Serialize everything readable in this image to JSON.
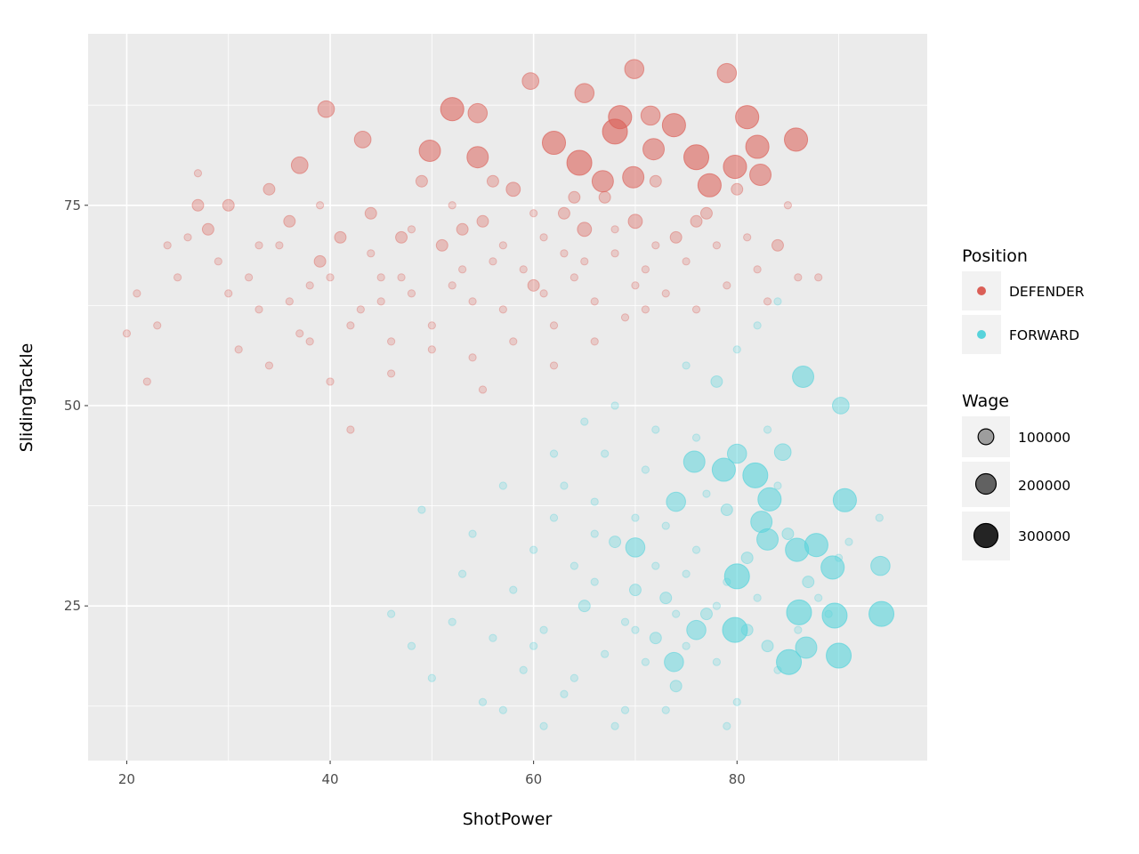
{
  "chart_data": {
    "type": "scatter",
    "xlabel": "ShotPower",
    "ylabel": "SlidingTackle",
    "xlim": [
      16.2,
      98.7
    ],
    "ylim": [
      5.7,
      96.4
    ],
    "x_ticks": [
      20,
      40,
      60,
      80
    ],
    "y_ticks": [
      25,
      50,
      75
    ],
    "grid": true,
    "legend_position": "right",
    "color_legend": {
      "title": "Position",
      "entries": [
        "DEFENDER",
        "FORWARD"
      ]
    },
    "size_legend": {
      "title": "Wage",
      "entries": [
        100000,
        200000,
        300000
      ],
      "labels": [
        "100000",
        "200000",
        "300000"
      ]
    },
    "colors": {
      "DEFENDER": "#db5f57",
      "FORWARD": "#57d3db"
    },
    "series": [
      {
        "name": "DEFENDER",
        "points": [
          [
            52,
            87,
            250000
          ],
          [
            54.5,
            86.5,
            150000
          ],
          [
            69.9,
            92,
            150000
          ],
          [
            79,
            91.5,
            150000
          ],
          [
            65,
            89,
            150000
          ],
          [
            59.7,
            90.5,
            100000
          ],
          [
            81,
            86,
            250000
          ],
          [
            68.5,
            86,
            250000
          ],
          [
            68,
            84.2,
            300000
          ],
          [
            73.8,
            85,
            250000
          ],
          [
            62,
            82.8,
            250000
          ],
          [
            64.5,
            80.3,
            300000
          ],
          [
            76,
            81,
            300000
          ],
          [
            77.3,
            77.5,
            250000
          ],
          [
            82,
            82.3,
            250000
          ],
          [
            85.8,
            83.2,
            250000
          ],
          [
            79.8,
            79.8,
            250000
          ],
          [
            82.3,
            78.8,
            200000
          ],
          [
            69.8,
            78.5,
            200000
          ],
          [
            71.8,
            82,
            200000
          ],
          [
            54.5,
            81,
            200000
          ],
          [
            49.8,
            81.8,
            200000
          ],
          [
            39.6,
            87,
            100000
          ],
          [
            37,
            80,
            100000
          ],
          [
            43.2,
            83.2,
            100000
          ],
          [
            71.5,
            86.2,
            150000
          ],
          [
            66.8,
            78,
            200000
          ],
          [
            20,
            59,
            3000
          ],
          [
            21,
            64,
            3000
          ],
          [
            22,
            53,
            3000
          ],
          [
            23,
            60,
            3000
          ],
          [
            24,
            70,
            3000
          ],
          [
            25,
            66,
            3000
          ],
          [
            26,
            71,
            3000
          ],
          [
            27,
            75,
            30000
          ],
          [
            28,
            72,
            30000
          ],
          [
            29,
            68,
            3000
          ],
          [
            30,
            75,
            30000
          ],
          [
            31,
            57,
            3000
          ],
          [
            32,
            66,
            3000
          ],
          [
            33,
            62,
            3000
          ],
          [
            34,
            77,
            30000
          ],
          [
            35,
            70,
            3000
          ],
          [
            36,
            73,
            30000
          ],
          [
            37,
            59,
            3000
          ],
          [
            38,
            65,
            3000
          ],
          [
            39,
            68,
            30000
          ],
          [
            40,
            53,
            3000
          ],
          [
            41,
            71,
            30000
          ],
          [
            42,
            47,
            3000
          ],
          [
            43,
            62,
            3000
          ],
          [
            44,
            74,
            30000
          ],
          [
            45,
            66,
            3000
          ],
          [
            46,
            58,
            3000
          ],
          [
            47,
            71,
            30000
          ],
          [
            48,
            64,
            3000
          ],
          [
            49,
            78,
            30000
          ],
          [
            50,
            60,
            3000
          ],
          [
            51,
            70,
            30000
          ],
          [
            52,
            65,
            3000
          ],
          [
            53,
            72,
            30000
          ],
          [
            54,
            56,
            3000
          ],
          [
            55,
            73,
            30000
          ],
          [
            56,
            68,
            3000
          ],
          [
            57,
            62,
            3000
          ],
          [
            58,
            77,
            60000
          ],
          [
            59,
            67,
            3000
          ],
          [
            60,
            65,
            30000
          ],
          [
            61,
            71,
            3000
          ],
          [
            62,
            60,
            3000
          ],
          [
            63,
            74,
            30000
          ],
          [
            64,
            66,
            3000
          ],
          [
            65,
            72,
            60000
          ],
          [
            66,
            63,
            3000
          ],
          [
            67,
            76,
            30000
          ],
          [
            68,
            69,
            3000
          ],
          [
            69,
            61,
            3000
          ],
          [
            70,
            73,
            60000
          ],
          [
            71,
            67,
            3000
          ],
          [
            72,
            78,
            30000
          ],
          [
            73,
            64,
            3000
          ],
          [
            74,
            71,
            30000
          ],
          [
            75,
            68,
            3000
          ],
          [
            76,
            62,
            3000
          ],
          [
            77,
            74,
            30000
          ],
          [
            78,
            70,
            3000
          ],
          [
            79,
            65,
            3000
          ],
          [
            80,
            77,
            30000
          ],
          [
            81,
            71,
            3000
          ],
          [
            82,
            67,
            3000
          ],
          [
            83,
            63,
            3000
          ],
          [
            84,
            70,
            30000
          ],
          [
            85,
            75,
            3000
          ],
          [
            86,
            66,
            3000
          ],
          [
            88,
            66,
            3000
          ],
          [
            34,
            55,
            3000
          ],
          [
            38,
            58,
            3000
          ],
          [
            42,
            60,
            3000
          ],
          [
            46,
            54,
            3000
          ],
          [
            50,
            57,
            3000
          ],
          [
            55,
            52,
            3000
          ],
          [
            58,
            58,
            3000
          ],
          [
            62,
            55,
            3000
          ],
          [
            66,
            58,
            3000
          ],
          [
            30,
            64,
            3000
          ],
          [
            33,
            70,
            3000
          ],
          [
            36,
            63,
            3000
          ],
          [
            40,
            66,
            3000
          ],
          [
            44,
            69,
            3000
          ],
          [
            48,
            72,
            3000
          ],
          [
            52,
            75,
            3000
          ],
          [
            56,
            78,
            30000
          ],
          [
            60,
            74,
            3000
          ],
          [
            64,
            76,
            30000
          ],
          [
            68,
            72,
            3000
          ],
          [
            72,
            70,
            3000
          ],
          [
            76,
            73,
            30000
          ],
          [
            45,
            63,
            3000
          ],
          [
            53,
            67,
            3000
          ],
          [
            57,
            70,
            3000
          ],
          [
            61,
            64,
            3000
          ],
          [
            65,
            68,
            3000
          ],
          [
            70,
            65,
            3000
          ],
          [
            27,
            79,
            3000
          ],
          [
            39,
            75,
            3000
          ],
          [
            47,
            66,
            3000
          ],
          [
            54,
            63,
            3000
          ],
          [
            63,
            69,
            3000
          ],
          [
            71,
            62,
            3000
          ]
        ]
      },
      {
        "name": "FORWARD",
        "points": [
          [
            86.5,
            53.6,
            200000
          ],
          [
            90.2,
            50,
            100000
          ],
          [
            75.8,
            43,
            200000
          ],
          [
            78.7,
            42,
            250000
          ],
          [
            81.8,
            41.3,
            300000
          ],
          [
            83.2,
            38.3,
            250000
          ],
          [
            90.6,
            38.2,
            250000
          ],
          [
            82.4,
            35.5,
            200000
          ],
          [
            85.9,
            32,
            250000
          ],
          [
            87.8,
            32.6,
            250000
          ],
          [
            89.4,
            29.8,
            250000
          ],
          [
            94.1,
            30,
            150000
          ],
          [
            80,
            28.7,
            300000
          ],
          [
            86.1,
            24.2,
            300000
          ],
          [
            89.6,
            23.8,
            300000
          ],
          [
            94.2,
            24,
            300000
          ],
          [
            79.8,
            22,
            300000
          ],
          [
            90,
            18.8,
            300000
          ],
          [
            85.1,
            18,
            300000
          ],
          [
            86.8,
            19.8,
            200000
          ],
          [
            70,
            32.3,
            150000
          ],
          [
            74,
            38,
            150000
          ],
          [
            83,
            33.3,
            200000
          ],
          [
            76,
            22,
            150000
          ],
          [
            73.8,
            18,
            150000
          ],
          [
            80,
            44,
            150000
          ],
          [
            84.5,
            44.2,
            100000
          ],
          [
            46,
            24,
            3000
          ],
          [
            48,
            20,
            3000
          ],
          [
            49,
            37,
            3000
          ],
          [
            50,
            16,
            3000
          ],
          [
            52,
            23,
            3000
          ],
          [
            53,
            29,
            3000
          ],
          [
            54,
            34,
            3000
          ],
          [
            55,
            13,
            3000
          ],
          [
            56,
            21,
            3000
          ],
          [
            57,
            40,
            3000
          ],
          [
            58,
            27,
            3000
          ],
          [
            59,
            17,
            3000
          ],
          [
            60,
            32,
            3000
          ],
          [
            61,
            22,
            3000
          ],
          [
            62,
            44,
            3000
          ],
          [
            63,
            14,
            3000
          ],
          [
            64,
            30,
            3000
          ],
          [
            65,
            25,
            30000
          ],
          [
            66,
            38,
            3000
          ],
          [
            67,
            19,
            3000
          ],
          [
            68,
            33,
            30000
          ],
          [
            69,
            12,
            3000
          ],
          [
            70,
            27,
            30000
          ],
          [
            71,
            42,
            3000
          ],
          [
            72,
            21,
            30000
          ],
          [
            73,
            35,
            3000
          ],
          [
            74,
            15,
            30000
          ],
          [
            75,
            29,
            3000
          ],
          [
            76,
            46,
            3000
          ],
          [
            77,
            24,
            30000
          ],
          [
            78,
            18,
            3000
          ],
          [
            79,
            37,
            30000
          ],
          [
            80,
            13,
            3000
          ],
          [
            81,
            31,
            30000
          ],
          [
            82,
            26,
            3000
          ],
          [
            83,
            20,
            30000
          ],
          [
            84,
            40,
            3000
          ],
          [
            85,
            34,
            30000
          ],
          [
            86,
            22,
            3000
          ],
          [
            87,
            28,
            30000
          ],
          [
            88,
            26,
            3000
          ],
          [
            89,
            24,
            3000
          ],
          [
            90,
            31,
            3000
          ],
          [
            91,
            33,
            3000
          ],
          [
            94,
            36,
            3000
          ],
          [
            65,
            48,
            3000
          ],
          [
            68,
            50,
            3000
          ],
          [
            72,
            47,
            3000
          ],
          [
            75,
            55,
            3000
          ],
          [
            78,
            53,
            30000
          ],
          [
            80,
            57,
            3000
          ],
          [
            82,
            60,
            3000
          ],
          [
            84,
            63,
            3000
          ],
          [
            63,
            40,
            3000
          ],
          [
            66,
            28,
            3000
          ],
          [
            69,
            23,
            3000
          ],
          [
            71,
            18,
            3000
          ],
          [
            73,
            26,
            30000
          ],
          [
            76,
            32,
            3000
          ],
          [
            79,
            28,
            3000
          ],
          [
            81,
            22,
            30000
          ],
          [
            84,
            17,
            3000
          ],
          [
            60,
            20,
            3000
          ],
          [
            62,
            36,
            3000
          ],
          [
            70,
            36,
            3000
          ],
          [
            74,
            24,
            3000
          ],
          [
            77,
            39,
            3000
          ],
          [
            83,
            47,
            3000
          ],
          [
            67,
            44,
            3000
          ],
          [
            57,
            12,
            3000
          ],
          [
            61,
            10,
            3000
          ],
          [
            64,
            16,
            3000
          ],
          [
            73,
            12,
            3000
          ],
          [
            79,
            10,
            3000
          ],
          [
            68,
            10,
            3000
          ],
          [
            75,
            20,
            3000
          ],
          [
            72,
            30,
            3000
          ],
          [
            70,
            22,
            3000
          ],
          [
            66,
            34,
            3000
          ],
          [
            78,
            25,
            3000
          ]
        ]
      }
    ]
  }
}
